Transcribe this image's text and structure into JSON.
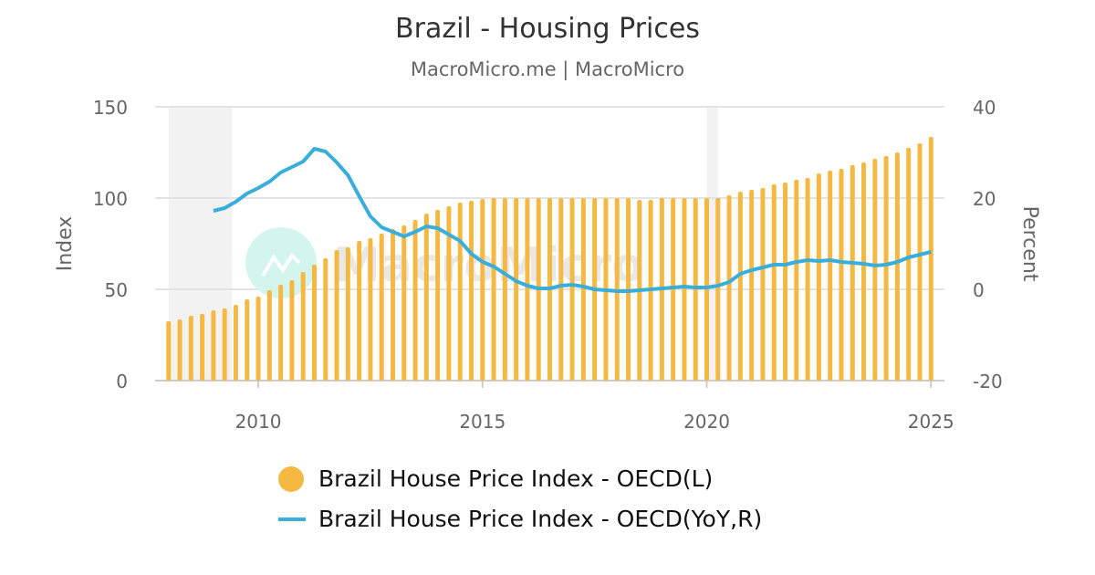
{
  "title": "Brazil - Housing Prices",
  "subtitle": "MacroMicro.me | MacroMicro",
  "watermark": "MacroMicro",
  "chart_data": {
    "type": "bar+line",
    "title": "Brazil - Housing Prices",
    "x_ticks": [
      "2010",
      "2015",
      "2020",
      "2025"
    ],
    "x_range": [
      2007.7,
      2025.3
    ],
    "left_axis": {
      "label": "Index",
      "range": [
        0,
        150
      ],
      "ticks": [
        "0",
        "50",
        "100",
        "150"
      ]
    },
    "right_axis": {
      "label": "Percent",
      "range": [
        -20,
        40
      ],
      "ticks": [
        "-20",
        "0",
        "20",
        "40"
      ]
    },
    "grid": true,
    "legend_position": "bottom",
    "shaded_periods": [
      [
        "2008-01",
        "2009-06"
      ],
      [
        "2020-01",
        "2020-04"
      ]
    ],
    "series": [
      {
        "name": "Brazil House Price Index - OECD(L)",
        "type": "bar",
        "axis": "left",
        "color": "#f5b942",
        "start": "2008Q1",
        "frequency": "quarterly",
        "values": [
          32.5,
          33.5,
          35.5,
          36.5,
          38.5,
          39.5,
          41.5,
          44.5,
          46,
          49.5,
          52.5,
          55,
          59.5,
          63.5,
          67,
          71.5,
          73,
          76.5,
          78,
          80.5,
          83,
          85,
          88,
          91.5,
          93.5,
          95.5,
          97.5,
          98.5,
          99.5,
          100,
          100,
          100,
          100,
          100,
          100,
          100,
          100,
          100,
          100,
          100,
          100,
          100,
          99,
          99,
          100,
          100,
          100,
          100,
          100,
          100,
          101.5,
          103.5,
          104.5,
          105.5,
          107.5,
          108.5,
          110,
          111,
          113.5,
          115,
          116,
          118,
          119.5,
          121.5,
          123,
          125,
          127.5,
          130,
          133.5
        ]
      },
      {
        "name": "Brazil House Price Index - OECD(YoY,R)",
        "type": "line",
        "axis": "right",
        "color": "#3aaedb",
        "start": "2009Q1",
        "frequency": "quarterly",
        "values": [
          17.2,
          17.8,
          19.2,
          21,
          22.2,
          23.6,
          25.6,
          26.8,
          28,
          30.8,
          30.2,
          27.8,
          25,
          20.4,
          16,
          13.6,
          12.6,
          11.6,
          12.6,
          13.8,
          13.4,
          12,
          10.6,
          7.8,
          6,
          5,
          3.4,
          1.8,
          0.8,
          0.2,
          0.2,
          0.8,
          1,
          0.6,
          0,
          -0.2,
          -0.4,
          -0.4,
          -0.2,
          0,
          0.2,
          0.4,
          0.6,
          0.4,
          0.4,
          0.8,
          1.6,
          3.4,
          4.2,
          4.8,
          5.4,
          5.4,
          6,
          6.4,
          6.2,
          6.4,
          6,
          5.8,
          5.6,
          5.2,
          5.4,
          6,
          7,
          7.6,
          8.2
        ]
      }
    ]
  }
}
